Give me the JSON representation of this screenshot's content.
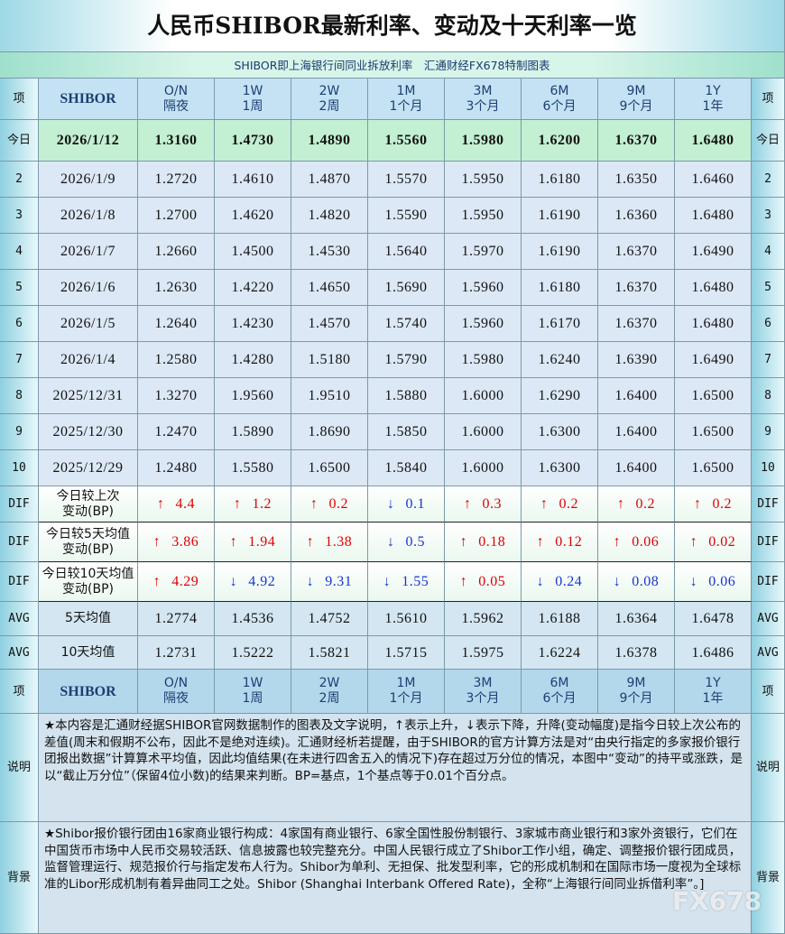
{
  "title": "人民币SHIBOR最新利率、变动及十天利率一览",
  "subtitle": "SHIBOR即上海银行间同业拆放利率　汇通财经FX678特制图表",
  "header": {
    "side": "项",
    "label": "SHIBOR",
    "columns": [
      {
        "code": "O/N",
        "name": "隔夜"
      },
      {
        "code": "1W",
        "name": "1周"
      },
      {
        "code": "2W",
        "name": "2周"
      },
      {
        "code": "1M",
        "name": "1个月"
      },
      {
        "code": "3M",
        "name": "3个月"
      },
      {
        "code": "6M",
        "name": "6个月"
      },
      {
        "code": "9M",
        "name": "9个月"
      },
      {
        "code": "1Y",
        "name": "1年"
      }
    ]
  },
  "today": {
    "side": "今日",
    "date": "2026/1/12",
    "values": [
      "1.3160",
      "1.4730",
      "1.4890",
      "1.5560",
      "1.5980",
      "1.6200",
      "1.6370",
      "1.6480"
    ]
  },
  "history": [
    {
      "side": "2",
      "date": "2026/1/9",
      "values": [
        "1.2720",
        "1.4610",
        "1.4870",
        "1.5570",
        "1.5950",
        "1.6180",
        "1.6350",
        "1.6460"
      ]
    },
    {
      "side": "3",
      "date": "2026/1/8",
      "values": [
        "1.2700",
        "1.4620",
        "1.4820",
        "1.5590",
        "1.5950",
        "1.6190",
        "1.6360",
        "1.6480"
      ]
    },
    {
      "side": "4",
      "date": "2026/1/7",
      "values": [
        "1.2660",
        "1.4500",
        "1.4530",
        "1.5640",
        "1.5970",
        "1.6190",
        "1.6370",
        "1.6490"
      ]
    },
    {
      "side": "5",
      "date": "2026/1/6",
      "values": [
        "1.2630",
        "1.4220",
        "1.4650",
        "1.5690",
        "1.5960",
        "1.6180",
        "1.6370",
        "1.6480"
      ]
    },
    {
      "side": "6",
      "date": "2026/1/5",
      "values": [
        "1.2640",
        "1.4230",
        "1.4570",
        "1.5740",
        "1.5960",
        "1.6170",
        "1.6370",
        "1.6480"
      ]
    },
    {
      "side": "7",
      "date": "2026/1/4",
      "values": [
        "1.2580",
        "1.4280",
        "1.5180",
        "1.5790",
        "1.5980",
        "1.6240",
        "1.6390",
        "1.6490"
      ]
    },
    {
      "side": "8",
      "date": "2025/12/31",
      "values": [
        "1.3270",
        "1.9560",
        "1.9510",
        "1.5880",
        "1.6000",
        "1.6290",
        "1.6400",
        "1.6500"
      ]
    },
    {
      "side": "9",
      "date": "2025/12/30",
      "values": [
        "1.2470",
        "1.5890",
        "1.8690",
        "1.5850",
        "1.6000",
        "1.6300",
        "1.6400",
        "1.6500"
      ]
    },
    {
      "side": "10",
      "date": "2025/12/29",
      "values": [
        "1.2480",
        "1.5580",
        "1.6500",
        "1.5840",
        "1.6000",
        "1.6300",
        "1.6400",
        "1.6500"
      ]
    }
  ],
  "changes": [
    {
      "side": "DIF",
      "label": [
        "今日较上次",
        "变动(BP)"
      ],
      "values": [
        {
          "arrow": "↑",
          "value": "4.4"
        },
        {
          "arrow": "↑",
          "value": "1.2"
        },
        {
          "arrow": "↑",
          "value": "0.2"
        },
        {
          "arrow": "↓",
          "value": "0.1"
        },
        {
          "arrow": "↑",
          "value": "0.3"
        },
        {
          "arrow": "↑",
          "value": "0.2"
        },
        {
          "arrow": "↑",
          "value": "0.2"
        },
        {
          "arrow": "↑",
          "value": "0.2"
        }
      ]
    },
    {
      "side": "DIF",
      "label": [
        "今日较5天均值",
        "变动(BP)"
      ],
      "values": [
        {
          "arrow": "↑",
          "value": "3.86"
        },
        {
          "arrow": "↑",
          "value": "1.94"
        },
        {
          "arrow": "↑",
          "value": "1.38"
        },
        {
          "arrow": "↓",
          "value": "0.5"
        },
        {
          "arrow": "↑",
          "value": "0.18"
        },
        {
          "arrow": "↑",
          "value": "0.12"
        },
        {
          "arrow": "↑",
          "value": "0.06"
        },
        {
          "arrow": "↑",
          "value": "0.02"
        }
      ]
    },
    {
      "side": "DIF",
      "label": [
        "今日较10天均值",
        "变动(BP)"
      ],
      "values": [
        {
          "arrow": "↑",
          "value": "4.29"
        },
        {
          "arrow": "↓",
          "value": "4.92"
        },
        {
          "arrow": "↓",
          "value": "9.31"
        },
        {
          "arrow": "↓",
          "value": "1.55"
        },
        {
          "arrow": "↑",
          "value": "0.05"
        },
        {
          "arrow": "↓",
          "value": "0.24"
        },
        {
          "arrow": "↓",
          "value": "0.08"
        },
        {
          "arrow": "↓",
          "value": "0.06"
        }
      ]
    }
  ],
  "averages": [
    {
      "side": "AVG",
      "label": "5天均值",
      "values": [
        "1.2774",
        "1.4536",
        "1.4752",
        "1.5610",
        "1.5962",
        "1.6188",
        "1.6364",
        "1.6478"
      ]
    },
    {
      "side": "AVG",
      "label": "10天均值",
      "values": [
        "1.2731",
        "1.5222",
        "1.5821",
        "1.5715",
        "1.5975",
        "1.6224",
        "1.6378",
        "1.6486"
      ]
    }
  ],
  "notes": [
    {
      "side": "说明",
      "text": "★本内容是汇通财经据SHIBOR官网数据制作的图表及文字说明，↑表示上升，↓表示下降，升降(变动幅度)是指今日较上次公布的差值(周末和假期不公布，因此不是绝对连续)。汇通财经析若提醒，由于SHIBOR的官方计算方法是对“由央行指定的多家报价银行团报出数据”计算算术平均值，因此均值结果(在未进行四舍五入的情况下)存在超过万分位的情况，本图中“变动”的持平或涨跌，是以“截止万分位”（保留4位小数)的结果来判断。BP=基点，1个基点等于0.01个百分点。"
    },
    {
      "side": "背景",
      "text": "★Shibor报价银行团由16家商业银行构成：4家国有商业银行、6家全国性股份制银行、3家城市商业银行和3家外资银行，它们在中国货币市场中人民币交易较活跃、信息披露也较完整充分。中国人民银行成立了Shibor工作小组，确定、调整报价银行团成员，监督管理运行、规范报价行与指定发布人行为。Shibor为单利、无担保、批发型利率，它的形成机制和在国际市场一度视为全球标准的Libor形成机制有着异曲同工之处。Shibor (Shanghai Interbank Offered Rate)，全称“上海银行间同业拆借利率”。]"
    }
  ],
  "watermark": "FX678"
}
